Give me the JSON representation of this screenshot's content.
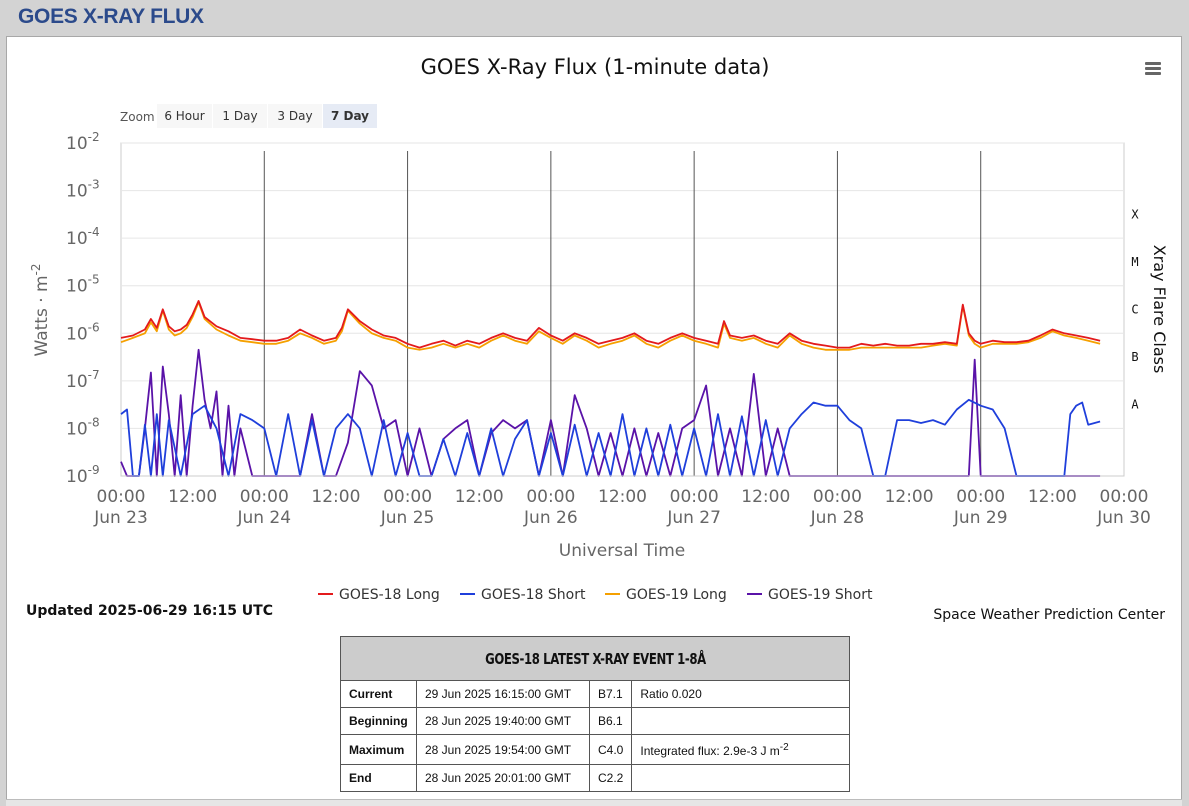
{
  "header": {
    "title": "GOES X-RAY FLUX"
  },
  "zoom": {
    "label": "Zoom",
    "buttons": [
      "6 Hour",
      "1 Day",
      "3 Day",
      "7 Day"
    ],
    "selected": "7 Day"
  },
  "updated": "Updated 2025-06-29 16:15 UTC",
  "credit": "Space Weather Prediction Center",
  "event_table": {
    "title": "GOES-18 LATEST X-RAY EVENT 1-8Å",
    "rows": [
      {
        "label": "Current",
        "time": "29 Jun 2025 16:15:00 GMT",
        "class": "B7.1",
        "note": "Ratio 0.020"
      },
      {
        "label": "Beginning",
        "time": "28 Jun 2025 19:40:00 GMT",
        "class": "B6.1",
        "note": ""
      },
      {
        "label": "Maximum",
        "time": "28 Jun 2025 19:54:00 GMT",
        "class": "C4.0",
        "note": "Integrated flux: 2.9e-3 J m",
        "note_sup": "-2"
      },
      {
        "label": "End",
        "time": "28 Jun 2025 20:01:00 GMT",
        "class": "C2.2",
        "note": ""
      }
    ]
  },
  "colors": {
    "goes18_long": "#e31a1c",
    "goes18_short": "#1f3fdb",
    "goes19_long": "#f5a000",
    "goes19_short": "#5a13a8"
  },
  "chart_data": {
    "type": "line",
    "title": "GOES X-Ray Flux (1-minute data)",
    "xlabel": "Universal Time",
    "ylabel": "Watts · m",
    "ylabel_sup": "-2",
    "y2label": "Xray Flare Class",
    "yscale": "log",
    "ylim": [
      1e-09,
      0.01
    ],
    "xlim_hours": [
      0,
      168
    ],
    "x_ticks": [
      {
        "hour": 0,
        "label": "00:00",
        "date": "Jun 23"
      },
      {
        "hour": 12,
        "label": "12:00",
        "date": ""
      },
      {
        "hour": 24,
        "label": "00:00",
        "date": "Jun 24"
      },
      {
        "hour": 36,
        "label": "12:00",
        "date": ""
      },
      {
        "hour": 48,
        "label": "00:00",
        "date": "Jun 25"
      },
      {
        "hour": 60,
        "label": "12:00",
        "date": ""
      },
      {
        "hour": 72,
        "label": "00:00",
        "date": "Jun 26"
      },
      {
        "hour": 84,
        "label": "12:00",
        "date": ""
      },
      {
        "hour": 96,
        "label": "00:00",
        "date": "Jun 27"
      },
      {
        "hour": 108,
        "label": "12:00",
        "date": ""
      },
      {
        "hour": 120,
        "label": "00:00",
        "date": "Jun 28"
      },
      {
        "hour": 132,
        "label": "12:00",
        "date": ""
      },
      {
        "hour": 144,
        "label": "00:00",
        "date": "Jun 29"
      },
      {
        "hour": 156,
        "label": "12:00",
        "date": ""
      },
      {
        "hour": 168,
        "label": "00:00",
        "date": "Jun 30"
      }
    ],
    "y_ticks": [
      {
        "base": "10",
        "exp": "-2",
        "value": 0.01
      },
      {
        "base": "10",
        "exp": "-3",
        "value": 0.001
      },
      {
        "base": "10",
        "exp": "-4",
        "value": 0.0001
      },
      {
        "base": "10",
        "exp": "-5",
        "value": 1e-05
      },
      {
        "base": "10",
        "exp": "-6",
        "value": 1e-06
      },
      {
        "base": "10",
        "exp": "-7",
        "value": 1e-07
      },
      {
        "base": "10",
        "exp": "-8",
        "value": 1e-08
      },
      {
        "base": "10",
        "exp": "-9",
        "value": 1e-09
      }
    ],
    "flare_classes": [
      {
        "label": "X",
        "value": 0.000316
      },
      {
        "label": "M",
        "value": 3.16e-05
      },
      {
        "label": "C",
        "value": 3.16e-06
      },
      {
        "label": "B",
        "value": 3.16e-07
      },
      {
        "label": "A",
        "value": 3.16e-08
      }
    ],
    "legend_placement": "bottom-center",
    "series": [
      {
        "name": "GOES-18 Long",
        "color_key": "goes18_long",
        "x": [
          0,
          2,
          4,
          5,
          6,
          7,
          8,
          9,
          10,
          11,
          12,
          13,
          14,
          16,
          18,
          20,
          22,
          24,
          26,
          28,
          30,
          32,
          34,
          36,
          37,
          38,
          40,
          42,
          44,
          46,
          48,
          50,
          52,
          54,
          56,
          58,
          60,
          62,
          64,
          66,
          68,
          70,
          72,
          74,
          76,
          78,
          80,
          82,
          84,
          86,
          88,
          90,
          92,
          94,
          96,
          98,
          100,
          101,
          102,
          104,
          106,
          108,
          110,
          112,
          114,
          116,
          118,
          120,
          122,
          124,
          126,
          128,
          130,
          132,
          134,
          136,
          138,
          140,
          141,
          142,
          143,
          144,
          146,
          148,
          150,
          152,
          154,
          156,
          158,
          160,
          162,
          164
        ],
        "y": [
          8e-07,
          9e-07,
          1.2e-06,
          2e-06,
          1.3e-06,
          3.2e-06,
          1.4e-06,
          1.1e-06,
          1.2e-06,
          1.5e-06,
          2.5e-06,
          4.8e-06,
          2.2e-06,
          1.4e-06,
          1.1e-06,
          8e-07,
          7.5e-07,
          7e-07,
          7e-07,
          8e-07,
          1.2e-06,
          9e-07,
          7e-07,
          8e-07,
          1.3e-06,
          3.2e-06,
          1.8e-06,
          1.2e-06,
          9e-07,
          8e-07,
          6e-07,
          5e-07,
          6e-07,
          7e-07,
          5.5e-07,
          7e-07,
          6e-07,
          8e-07,
          1e-06,
          8e-07,
          7e-07,
          1.3e-06,
          9e-07,
          7e-07,
          1e-06,
          8e-07,
          6e-07,
          7e-07,
          8e-07,
          1e-06,
          7e-07,
          6e-07,
          8e-07,
          1e-06,
          8e-07,
          7e-07,
          6e-07,
          1.8e-06,
          9e-07,
          8e-07,
          9e-07,
          7e-07,
          6e-07,
          1e-06,
          7e-07,
          6e-07,
          5.5e-07,
          5e-07,
          5e-07,
          6e-07,
          5.5e-07,
          6e-07,
          5.5e-07,
          5.5e-07,
          6e-07,
          6e-07,
          6.5e-07,
          6e-07,
          4e-06,
          1e-06,
          7e-07,
          6e-07,
          7e-07,
          6.5e-07,
          6.5e-07,
          7e-07,
          9e-07,
          1.2e-06,
          1e-06,
          9e-07,
          8e-07,
          7e-07
        ]
      },
      {
        "name": "GOES-19 Long",
        "color_key": "goes19_long",
        "x": [
          0,
          2,
          4,
          5,
          6,
          7,
          8,
          9,
          10,
          11,
          12,
          13,
          14,
          16,
          18,
          20,
          22,
          24,
          26,
          28,
          30,
          32,
          34,
          36,
          37,
          38,
          40,
          42,
          44,
          46,
          48,
          50,
          52,
          54,
          56,
          58,
          60,
          62,
          64,
          66,
          68,
          70,
          72,
          74,
          76,
          78,
          80,
          82,
          84,
          86,
          88,
          90,
          92,
          94,
          96,
          98,
          100,
          101,
          102,
          104,
          106,
          108,
          110,
          112,
          114,
          116,
          118,
          120,
          122,
          124,
          126,
          128,
          130,
          132,
          134,
          136,
          138,
          140,
          141,
          142,
          143,
          144,
          146,
          148,
          150,
          152,
          154,
          156,
          158,
          160,
          162,
          164
        ],
        "y": [
          6.5e-07,
          8e-07,
          1e-06,
          1.7e-06,
          1.1e-06,
          3e-06,
          1.2e-06,
          9e-07,
          1e-06,
          1.3e-06,
          2.2e-06,
          4.5e-06,
          2e-06,
          1.2e-06,
          9e-07,
          7e-07,
          6.5e-07,
          6e-07,
          6e-07,
          7e-07,
          1e-06,
          8e-07,
          6e-07,
          7e-07,
          1.1e-06,
          3e-06,
          1.6e-06,
          1e-06,
          8e-07,
          7e-07,
          5e-07,
          4.5e-07,
          5e-07,
          6e-07,
          5e-07,
          6e-07,
          5e-07,
          7e-07,
          9e-07,
          7e-07,
          6e-07,
          1.1e-06,
          8e-07,
          6e-07,
          9e-07,
          7e-07,
          5e-07,
          6e-07,
          7e-07,
          9e-07,
          6e-07,
          5e-07,
          7e-07,
          9e-07,
          7e-07,
          6e-07,
          5e-07,
          1.6e-06,
          8e-07,
          7e-07,
          8e-07,
          6e-07,
          5e-07,
          9e-07,
          6e-07,
          5e-07,
          4.5e-07,
          4.5e-07,
          4.5e-07,
          5e-07,
          5e-07,
          5e-07,
          5e-07,
          5e-07,
          5e-07,
          5.5e-07,
          6e-07,
          5.5e-07,
          3.8e-06,
          9e-07,
          6e-07,
          5e-07,
          6e-07,
          6e-07,
          6e-07,
          6.5e-07,
          8e-07,
          1.1e-06,
          9e-07,
          8e-07,
          7e-07,
          6e-07
        ]
      },
      {
        "name": "GOES-18 Short",
        "color_key": "goes18_short",
        "x": [
          0,
          1,
          2,
          3,
          4,
          5,
          6,
          7,
          8,
          10,
          12,
          14,
          16,
          18,
          20,
          22,
          24,
          26,
          28,
          30,
          32,
          34,
          36,
          38,
          40,
          42,
          44,
          46,
          48,
          50,
          52,
          54,
          56,
          58,
          60,
          62,
          64,
          66,
          68,
          70,
          72,
          74,
          76,
          78,
          80,
          82,
          84,
          86,
          88,
          90,
          92,
          94,
          96,
          98,
          100,
          102,
          104,
          106,
          108,
          110,
          112,
          114,
          116,
          118,
          120,
          122,
          124,
          126,
          128,
          130,
          132,
          134,
          136,
          138,
          140,
          142,
          144,
          146,
          148,
          150,
          152,
          154,
          156,
          158,
          159,
          160,
          161,
          162,
          164
        ],
        "y": [
          2e-08,
          2.5e-08,
          1e-09,
          1e-09,
          1.2e-08,
          1e-09,
          2e-08,
          1e-09,
          1.5e-08,
          1e-09,
          2e-08,
          3e-08,
          1e-08,
          1e-09,
          2e-08,
          1.5e-08,
          1e-08,
          1e-09,
          2e-08,
          1e-09,
          1.5e-08,
          1e-09,
          1e-08,
          2e-08,
          1e-08,
          1e-09,
          1.5e-08,
          1e-09,
          8e-09,
          1e-09,
          1e-09,
          6e-09,
          1e-09,
          8e-09,
          1e-09,
          1e-08,
          1e-09,
          6e-09,
          1.5e-08,
          1e-09,
          8e-09,
          1e-09,
          1.2e-08,
          1e-09,
          8e-09,
          1e-09,
          2e-08,
          1e-09,
          1e-08,
          1e-09,
          1.2e-08,
          1e-09,
          1e-08,
          1e-09,
          2e-08,
          1e-09,
          1.8e-08,
          1e-09,
          1.5e-08,
          1e-09,
          1e-08,
          2e-08,
          3.5e-08,
          3e-08,
          3e-08,
          1.5e-08,
          1e-08,
          1e-09,
          1e-09,
          1.5e-08,
          1.5e-08,
          1.3e-08,
          1.5e-08,
          1.2e-08,
          2.5e-08,
          4e-08,
          3e-08,
          2.5e-08,
          1e-08,
          1e-09,
          1e-09,
          1e-09,
          1e-09,
          1e-09,
          2e-08,
          3e-08,
          3.5e-08,
          1.2e-08,
          1.4e-08
        ]
      },
      {
        "name": "GOES-19 Short",
        "color_key": "goes19_short",
        "x": [
          0,
          1,
          2,
          3,
          4,
          5,
          6,
          7,
          8,
          9,
          10,
          11,
          12,
          13,
          14,
          15,
          16,
          17,
          18,
          19,
          20,
          22,
          24,
          26,
          28,
          30,
          32,
          34,
          36,
          38,
          40,
          42,
          44,
          46,
          48,
          50,
          52,
          54,
          56,
          58,
          60,
          62,
          64,
          66,
          68,
          70,
          72,
          74,
          76,
          78,
          80,
          82,
          84,
          86,
          88,
          90,
          92,
          94,
          96,
          98,
          100,
          102,
          104,
          106,
          108,
          110,
          112,
          114,
          116,
          118,
          120,
          122,
          124,
          126,
          128,
          130,
          132,
          134,
          136,
          138,
          140,
          142,
          143,
          144,
          146,
          148,
          150,
          152,
          154,
          156,
          158,
          160,
          162,
          164
        ],
        "y": [
          2e-09,
          1e-09,
          1e-09,
          1e-09,
          1e-08,
          1.5e-07,
          1e-09,
          2e-07,
          2e-08,
          1e-09,
          5e-08,
          1e-09,
          3e-08,
          4.5e-07,
          4e-08,
          1e-08,
          6e-08,
          1e-09,
          3e-08,
          1e-09,
          1e-08,
          1e-09,
          1e-09,
          1e-09,
          1e-09,
          1e-09,
          2e-08,
          1e-09,
          1e-09,
          5e-09,
          1.6e-07,
          8e-08,
          1e-08,
          1.5e-08,
          1e-09,
          1e-08,
          1e-09,
          6e-09,
          1e-08,
          1.5e-08,
          1e-09,
          8e-09,
          1.5e-08,
          1e-08,
          1.5e-08,
          1e-09,
          1.5e-08,
          1e-09,
          5e-08,
          1e-08,
          1e-09,
          8e-09,
          1e-09,
          1e-08,
          1e-09,
          8e-09,
          1e-09,
          1e-08,
          1.5e-08,
          8e-08,
          1e-09,
          1e-08,
          1e-09,
          1.4e-07,
          1e-09,
          1e-08,
          1e-09,
          1e-09,
          1e-09,
          1e-09,
          1e-09,
          1e-09,
          1e-09,
          1e-09,
          1e-09,
          1e-09,
          1e-09,
          1e-09,
          1e-09,
          1e-09,
          1e-09,
          1e-09,
          2.8e-07,
          1e-09,
          1e-09,
          1e-09,
          1e-09,
          1e-09,
          1e-09,
          1e-09,
          1e-09,
          1e-09,
          1e-09,
          1e-09
        ]
      }
    ]
  }
}
